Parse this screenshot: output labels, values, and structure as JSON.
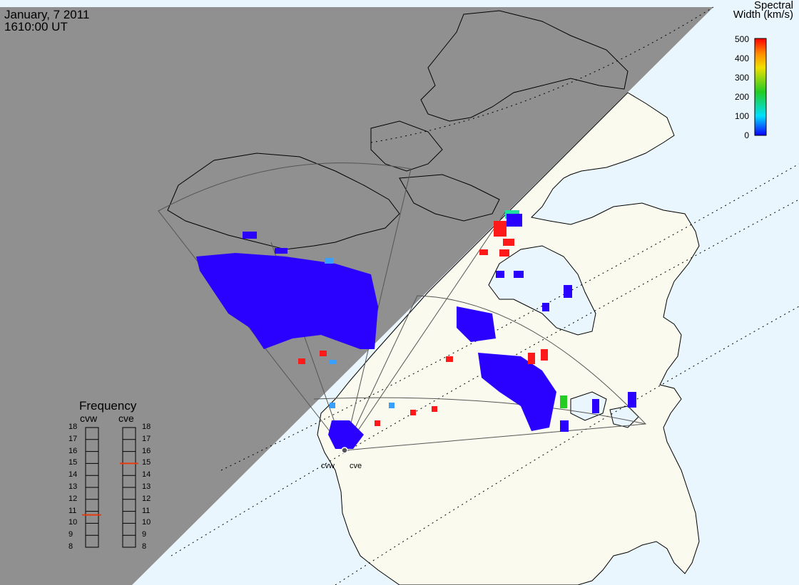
{
  "header": {
    "date": "January, 7 2011",
    "time": "1610:00 UT"
  },
  "colorbar": {
    "title_line1": "Spectral",
    "title_line2": "Width (km/s)",
    "ticks": [
      "500",
      "400",
      "300",
      "200",
      "100",
      "0"
    ],
    "min": 0,
    "max": 500,
    "colors": [
      "#0a00ff",
      "#00e0ff",
      "#22cc22",
      "#f0e000",
      "#ff8800",
      "#ff0000"
    ]
  },
  "frequency": {
    "title": "Frequency",
    "left_radar": "cvw",
    "right_radar": "cve",
    "scale": [
      "18",
      "17",
      "16",
      "15",
      "14",
      "13",
      "12",
      "11",
      "10",
      "9",
      "8"
    ],
    "cvw_mhz": 10.7,
    "cve_mhz": 15.0,
    "marker_color": "#e83a10"
  },
  "radars": {
    "west_label": "cvw",
    "east_label": "cve"
  },
  "colors": {
    "night": "#909090",
    "land": "#fafaee",
    "ocean": "#eaf6fd",
    "scatter": "#2a00ff"
  }
}
